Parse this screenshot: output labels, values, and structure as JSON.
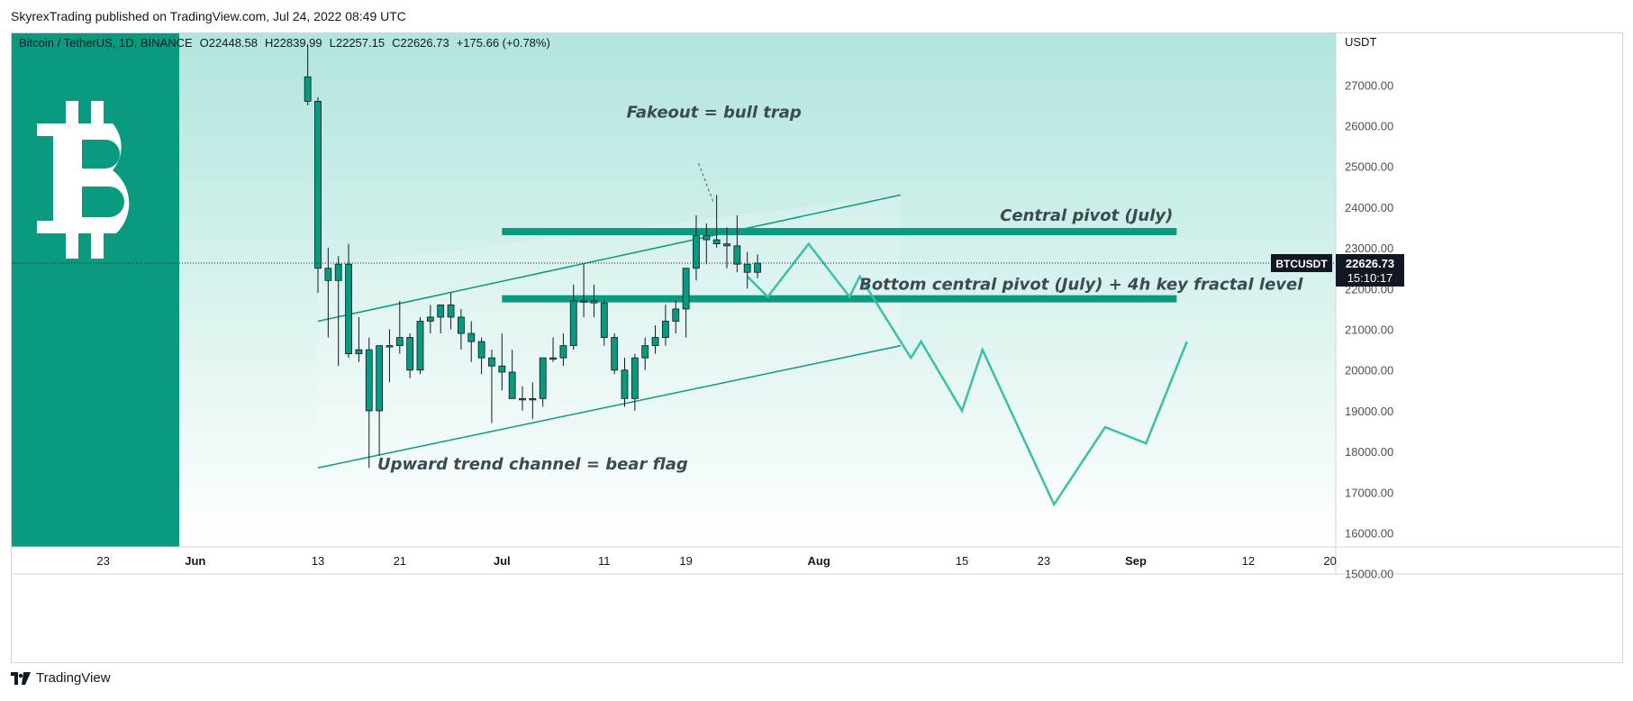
{
  "header": {
    "publish_line": "SkyrexTrading published on TradingView.com, Jul 24, 2022 08:49 UTC"
  },
  "footer": {
    "brand": "TradingView"
  },
  "colors": {
    "bull": "#089981",
    "bear": "#089981",
    "accent": "#0a9a80",
    "projection": "#3bbfa8",
    "bg_top": "#b1e5dd",
    "bg_bottom": "#ffffff",
    "annotation": "#3c4a52"
  },
  "chart_data": {
    "type": "candlestick",
    "symbol_line": {
      "symbol": "Bitcoin / TetherUS, 1D, BINANCE",
      "open": "O22448.58",
      "high": "H22839.99",
      "low": "L22257.15",
      "close": "C22626.73",
      "change": "+175.66 (+0.78%)"
    },
    "price_axis": {
      "unit": "USDT",
      "ticks": [
        "27000.00",
        "26000.00",
        "25000.00",
        "24000.00",
        "23000.00",
        "22000.00",
        "21000.00",
        "20000.00",
        "19000.00",
        "18000.00",
        "17000.00",
        "16000.00",
        "15000.00"
      ],
      "ylim": [
        15000,
        28000
      ]
    },
    "time_axis": {
      "labels": [
        {
          "text": "23",
          "date": "2022-05-23"
        },
        {
          "text": "Jun",
          "date": "2022-06-01"
        },
        {
          "text": "13",
          "date": "2022-06-13"
        },
        {
          "text": "21",
          "date": "2022-06-21"
        },
        {
          "text": "Jul",
          "date": "2022-07-01"
        },
        {
          "text": "11",
          "date": "2022-07-11"
        },
        {
          "text": "19",
          "date": "2022-07-19"
        },
        {
          "text": "Aug",
          "date": "2022-08-01"
        },
        {
          "text": "15",
          "date": "2022-08-15"
        },
        {
          "text": "23",
          "date": "2022-08-23"
        },
        {
          "text": "Sep",
          "date": "2022-09-01"
        },
        {
          "text": "12",
          "date": "2022-09-12"
        },
        {
          "text": "20",
          "date": "2022-09-20"
        }
      ]
    },
    "last_price": {
      "symbol": "BTCUSDT",
      "price": "22626.73",
      "countdown": "15:10:17",
      "value": 22626.73
    },
    "candles": [
      {
        "date": "2022-06-12",
        "o": 26600,
        "h": 28000,
        "l": 26500,
        "c": 27200
      },
      {
        "date": "2022-06-13",
        "o": 26600,
        "h": 26700,
        "l": 21900,
        "c": 22500
      },
      {
        "date": "2022-06-14",
        "o": 22500,
        "h": 23000,
        "l": 20800,
        "c": 22200
      },
      {
        "date": "2022-06-15",
        "o": 22200,
        "h": 22800,
        "l": 20100,
        "c": 22600
      },
      {
        "date": "2022-06-16",
        "o": 22600,
        "h": 23100,
        "l": 20300,
        "c": 20400
      },
      {
        "date": "2022-06-17",
        "o": 20400,
        "h": 21300,
        "l": 20200,
        "c": 20500
      },
      {
        "date": "2022-06-18",
        "o": 20500,
        "h": 20800,
        "l": 17600,
        "c": 19000
      },
      {
        "date": "2022-06-19",
        "o": 19000,
        "h": 20500,
        "l": 17900,
        "c": 20600
      },
      {
        "date": "2022-06-20",
        "o": 20600,
        "h": 21000,
        "l": 19700,
        "c": 20600
      },
      {
        "date": "2022-06-21",
        "o": 20600,
        "h": 21700,
        "l": 20400,
        "c": 20800
      },
      {
        "date": "2022-06-22",
        "o": 20800,
        "h": 20900,
        "l": 19800,
        "c": 20000
      },
      {
        "date": "2022-06-23",
        "o": 20000,
        "h": 21300,
        "l": 19900,
        "c": 21200
      },
      {
        "date": "2022-06-24",
        "o": 21200,
        "h": 21600,
        "l": 20900,
        "c": 21300
      },
      {
        "date": "2022-06-25",
        "o": 21300,
        "h": 21600,
        "l": 20900,
        "c": 21600
      },
      {
        "date": "2022-06-26",
        "o": 21600,
        "h": 21900,
        "l": 21000,
        "c": 21300
      },
      {
        "date": "2022-06-27",
        "o": 21300,
        "h": 21500,
        "l": 20500,
        "c": 20900
      },
      {
        "date": "2022-06-28",
        "o": 20900,
        "h": 21200,
        "l": 20200,
        "c": 20700
      },
      {
        "date": "2022-06-29",
        "o": 20700,
        "h": 20800,
        "l": 19900,
        "c": 20300
      },
      {
        "date": "2022-06-30",
        "o": 20300,
        "h": 20500,
        "l": 18700,
        "c": 20100
      },
      {
        "date": "2022-07-01",
        "o": 20100,
        "h": 20900,
        "l": 19500,
        "c": 19950
      },
      {
        "date": "2022-07-02",
        "o": 19950,
        "h": 20500,
        "l": 19300,
        "c": 19300
      },
      {
        "date": "2022-07-03",
        "o": 19300,
        "h": 19600,
        "l": 19000,
        "c": 19300
      },
      {
        "date": "2022-07-04",
        "o": 19300,
        "h": 19700,
        "l": 18800,
        "c": 19300
      },
      {
        "date": "2022-07-05",
        "o": 19300,
        "h": 20300,
        "l": 19100,
        "c": 20300
      },
      {
        "date": "2022-07-06",
        "o": 20300,
        "h": 20800,
        "l": 20200,
        "c": 20300
      },
      {
        "date": "2022-07-07",
        "o": 20300,
        "h": 20900,
        "l": 20100,
        "c": 20600
      },
      {
        "date": "2022-07-08",
        "o": 20600,
        "h": 22100,
        "l": 20500,
        "c": 21700
      },
      {
        "date": "2022-07-09",
        "o": 21700,
        "h": 22600,
        "l": 21300,
        "c": 21700
      },
      {
        "date": "2022-07-10",
        "o": 21700,
        "h": 22100,
        "l": 21300,
        "c": 21650
      },
      {
        "date": "2022-07-11",
        "o": 21650,
        "h": 21700,
        "l": 20600,
        "c": 20800
      },
      {
        "date": "2022-07-12",
        "o": 20800,
        "h": 20900,
        "l": 19900,
        "c": 20000
      },
      {
        "date": "2022-07-13",
        "o": 20000,
        "h": 20300,
        "l": 19100,
        "c": 19300
      },
      {
        "date": "2022-07-14",
        "o": 19300,
        "h": 20400,
        "l": 19000,
        "c": 20300
      },
      {
        "date": "2022-07-15",
        "o": 20300,
        "h": 20800,
        "l": 20000,
        "c": 20600
      },
      {
        "date": "2022-07-16",
        "o": 20600,
        "h": 21100,
        "l": 20400,
        "c": 20800
      },
      {
        "date": "2022-07-17",
        "o": 20800,
        "h": 21600,
        "l": 20600,
        "c": 21200
      },
      {
        "date": "2022-07-18",
        "o": 21200,
        "h": 21700,
        "l": 20900,
        "c": 21500
      },
      {
        "date": "2022-07-19",
        "o": 21500,
        "h": 22500,
        "l": 20800,
        "c": 22500
      },
      {
        "date": "2022-07-20",
        "o": 22500,
        "h": 23800,
        "l": 22200,
        "c": 23300
      },
      {
        "date": "2022-07-21",
        "o": 23300,
        "h": 23600,
        "l": 22600,
        "c": 23200
      },
      {
        "date": "2022-07-22",
        "o": 23200,
        "h": 24300,
        "l": 23000,
        "c": 23100
      },
      {
        "date": "2022-07-23",
        "o": 23100,
        "h": 23500,
        "l": 22500,
        "c": 23050
      },
      {
        "date": "2022-07-24",
        "o": 23050,
        "h": 23800,
        "l": 22400,
        "c": 22600
      },
      {
        "date": "2022-07-25",
        "o": 22600,
        "h": 22900,
        "l": 22000,
        "c": 22400
      },
      {
        "date": "2022-07-26",
        "o": 22400,
        "h": 22840,
        "l": 22257,
        "c": 22626
      }
    ],
    "channel": {
      "upper": [
        {
          "date": "2022-06-13",
          "price": 21200
        },
        {
          "date": "2022-08-09",
          "price": 24300
        }
      ],
      "lower": [
        {
          "date": "2022-06-13",
          "price": 17600
        },
        {
          "date": "2022-08-09",
          "price": 20600
        }
      ],
      "label": "Upward trend channel = bear flag"
    },
    "shaded_region": {
      "from": "2022-06-13",
      "to": "2022-08-09"
    },
    "levels": [
      {
        "label": "Central pivot (July)",
        "price": 23400,
        "from": "2022-07-01",
        "to": "2022-09-05"
      },
      {
        "label": "Bottom central pivot (July) + 4h key fractal level",
        "price": 21750,
        "from": "2022-07-01",
        "to": "2022-09-05"
      }
    ],
    "annotation": {
      "label": "Fakeout = bull trap",
      "target_date": "2022-07-22",
      "target_price": 24100
    },
    "projection": [
      {
        "date": "2022-07-25",
        "price": 22300
      },
      {
        "date": "2022-07-27",
        "price": 21800
      },
      {
        "date": "2022-07-31",
        "price": 23100
      },
      {
        "date": "2022-08-04",
        "price": 21800
      },
      {
        "date": "2022-08-05",
        "price": 22300
      },
      {
        "date": "2022-08-10",
        "price": 20300
      },
      {
        "date": "2022-08-11",
        "price": 20700
      },
      {
        "date": "2022-08-15",
        "price": 19000
      },
      {
        "date": "2022-08-17",
        "price": 20500
      },
      {
        "date": "2022-08-24",
        "price": 16700
      },
      {
        "date": "2022-08-29",
        "price": 18600
      },
      {
        "date": "2022-09-02",
        "price": 18200
      },
      {
        "date": "2022-09-06",
        "price": 20700
      }
    ],
    "logo": "bitcoin-b-icon"
  }
}
